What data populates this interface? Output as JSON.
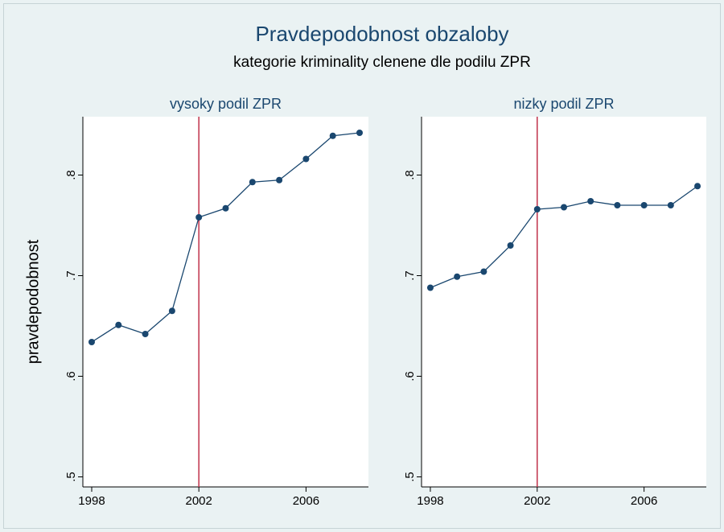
{
  "title": "Pravdepodobnost obzaloby",
  "subtitle": "kategorie kriminality clenene dle podilu ZPR",
  "y_label": "pravdepodobnost",
  "chart_data": [
    {
      "type": "line",
      "title": "vysoky podil ZPR",
      "x": [
        1998,
        1999,
        2000,
        2001,
        2002,
        2003,
        2004,
        2005,
        2006,
        2007,
        2008
      ],
      "values": [
        0.634,
        0.651,
        0.642,
        0.665,
        0.758,
        0.767,
        0.793,
        0.795,
        0.816,
        0.839,
        0.842
      ],
      "color": "#1a476f",
      "vline": 2002,
      "vline_color": "#c0314a",
      "xlim": [
        1997.67,
        2008.33
      ],
      "xticks": [
        1998,
        2002,
        2006
      ],
      "ylim": [
        0.49,
        0.858
      ],
      "yticks": [
        {
          "value": 0.5,
          "label": ".5"
        },
        {
          "value": 0.6,
          "label": ".6"
        },
        {
          "value": 0.7,
          "label": ".7"
        },
        {
          "value": 0.8,
          "label": ".8"
        }
      ]
    },
    {
      "type": "line",
      "title": "nizky podil ZPR",
      "x": [
        1998,
        1999,
        2000,
        2001,
        2002,
        2003,
        2004,
        2005,
        2006,
        2007,
        2008
      ],
      "values": [
        0.688,
        0.699,
        0.704,
        0.73,
        0.766,
        0.768,
        0.774,
        0.77,
        0.77,
        0.77,
        0.789
      ],
      "color": "#1a476f",
      "vline": 2002,
      "vline_color": "#c0314a",
      "xlim": [
        1997.67,
        2008.33
      ],
      "xticks": [
        1998,
        2002,
        2006
      ],
      "ylim": [
        0.49,
        0.858
      ],
      "yticks": [
        {
          "value": 0.5,
          "label": ".5"
        },
        {
          "value": 0.6,
          "label": ".6"
        },
        {
          "value": 0.7,
          "label": ".7"
        },
        {
          "value": 0.8,
          "label": ".8"
        }
      ]
    }
  ]
}
